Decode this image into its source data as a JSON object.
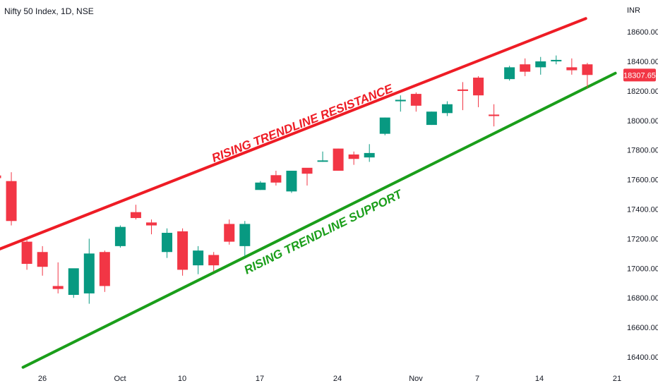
{
  "header": {
    "title": "Nifty 50 Index, 1D, NSE",
    "currency": "INR"
  },
  "price_label": {
    "value": "18307.65",
    "color": "#f23645"
  },
  "colors": {
    "up": "#089981",
    "down": "#f23645",
    "resistance": "#ee1c25",
    "support": "#1a9e1a",
    "axis_text": "#131722"
  },
  "chart_data": {
    "type": "candlestick",
    "title": "Nifty 50 Index, 1D, NSE",
    "ylabel": "INR",
    "ylim": [
      16320,
      18800
    ],
    "y_ticks": [
      "16400.00",
      "16600.00",
      "16800.00",
      "17000.00",
      "17200.00",
      "17400.00",
      "17600.00",
      "17800.00",
      "18000.00",
      "18200.00",
      "18400.00",
      "18600.00"
    ],
    "x_ticks": [
      "26",
      "Oct",
      "10",
      "17",
      "24",
      "Nov",
      "7",
      "14",
      "21"
    ],
    "candles": [
      {
        "o": 17628,
        "h": 17700,
        "l": 17540,
        "c": 17610
      },
      {
        "o": 17590,
        "h": 17650,
        "l": 17290,
        "c": 17320
      },
      {
        "o": 17180,
        "h": 17200,
        "l": 16990,
        "c": 17030
      },
      {
        "o": 17110,
        "h": 17150,
        "l": 16950,
        "c": 17010
      },
      {
        "o": 16880,
        "h": 17040,
        "l": 16830,
        "c": 16860
      },
      {
        "o": 16820,
        "h": 16990,
        "l": 16800,
        "c": 17000
      },
      {
        "o": 16830,
        "h": 17200,
        "l": 16760,
        "c": 17100
      },
      {
        "o": 17110,
        "h": 17120,
        "l": 16840,
        "c": 16880
      },
      {
        "o": 17150,
        "h": 17290,
        "l": 17140,
        "c": 17280
      },
      {
        "o": 17380,
        "h": 17430,
        "l": 17330,
        "c": 17340
      },
      {
        "o": 17310,
        "h": 17330,
        "l": 17230,
        "c": 17290
      },
      {
        "o": 17110,
        "h": 17270,
        "l": 17070,
        "c": 17240
      },
      {
        "o": 17250,
        "h": 17270,
        "l": 16950,
        "c": 16990
      },
      {
        "o": 17020,
        "h": 17150,
        "l": 16960,
        "c": 17120
      },
      {
        "o": 17090,
        "h": 17110,
        "l": 16980,
        "c": 17020
      },
      {
        "o": 17300,
        "h": 17330,
        "l": 17160,
        "c": 17180
      },
      {
        "o": 17150,
        "h": 17320,
        "l": 17080,
        "c": 17300
      },
      {
        "o": 17530,
        "h": 17590,
        "l": 17530,
        "c": 17580
      },
      {
        "o": 17630,
        "h": 17660,
        "l": 17560,
        "c": 17580
      },
      {
        "o": 17520,
        "h": 17660,
        "l": 17510,
        "c": 17660
      },
      {
        "o": 17680,
        "h": 17670,
        "l": 17560,
        "c": 17640
      },
      {
        "o": 17730,
        "h": 17790,
        "l": 17720,
        "c": 17730
      },
      {
        "o": 17810,
        "h": 17810,
        "l": 17660,
        "c": 17660
      },
      {
        "o": 17770,
        "h": 17790,
        "l": 17700,
        "c": 17740
      },
      {
        "o": 17750,
        "h": 17840,
        "l": 17720,
        "c": 17780
      },
      {
        "o": 17910,
        "h": 18020,
        "l": 17900,
        "c": 18020
      },
      {
        "o": 18130,
        "h": 18170,
        "l": 18060,
        "c": 18140
      },
      {
        "o": 18180,
        "h": 18190,
        "l": 18060,
        "c": 18100
      },
      {
        "o": 17970,
        "h": 18060,
        "l": 17970,
        "c": 18060
      },
      {
        "o": 18050,
        "h": 18130,
        "l": 18030,
        "c": 18110
      },
      {
        "o": 18210,
        "h": 18260,
        "l": 18070,
        "c": 18200
      },
      {
        "o": 18290,
        "h": 18300,
        "l": 18090,
        "c": 18170
      },
      {
        "o": 18040,
        "h": 18110,
        "l": 17960,
        "c": 18030
      },
      {
        "o": 18280,
        "h": 18370,
        "l": 18270,
        "c": 18360
      },
      {
        "o": 18380,
        "h": 18420,
        "l": 18300,
        "c": 18330
      },
      {
        "o": 18360,
        "h": 18430,
        "l": 18310,
        "c": 18400
      },
      {
        "o": 18400,
        "h": 18440,
        "l": 18380,
        "c": 18410
      },
      {
        "o": 18360,
        "h": 18420,
        "l": 18310,
        "c": 18340
      },
      {
        "o": 18380,
        "h": 18390,
        "l": 18220,
        "c": 18308
      }
    ],
    "annotations": [
      {
        "text": "RISING TRENDLINE RESISTANCE",
        "color": "#ee1c25",
        "line": [
          [
            0,
            17120
          ],
          [
            37.9,
            18690
          ]
        ]
      },
      {
        "text": "RISING TRENDLINE SUPPORT",
        "color": "#1a9e1a",
        "line": [
          [
            1.75,
            16330
          ],
          [
            39.8,
            18320
          ]
        ]
      }
    ]
  }
}
